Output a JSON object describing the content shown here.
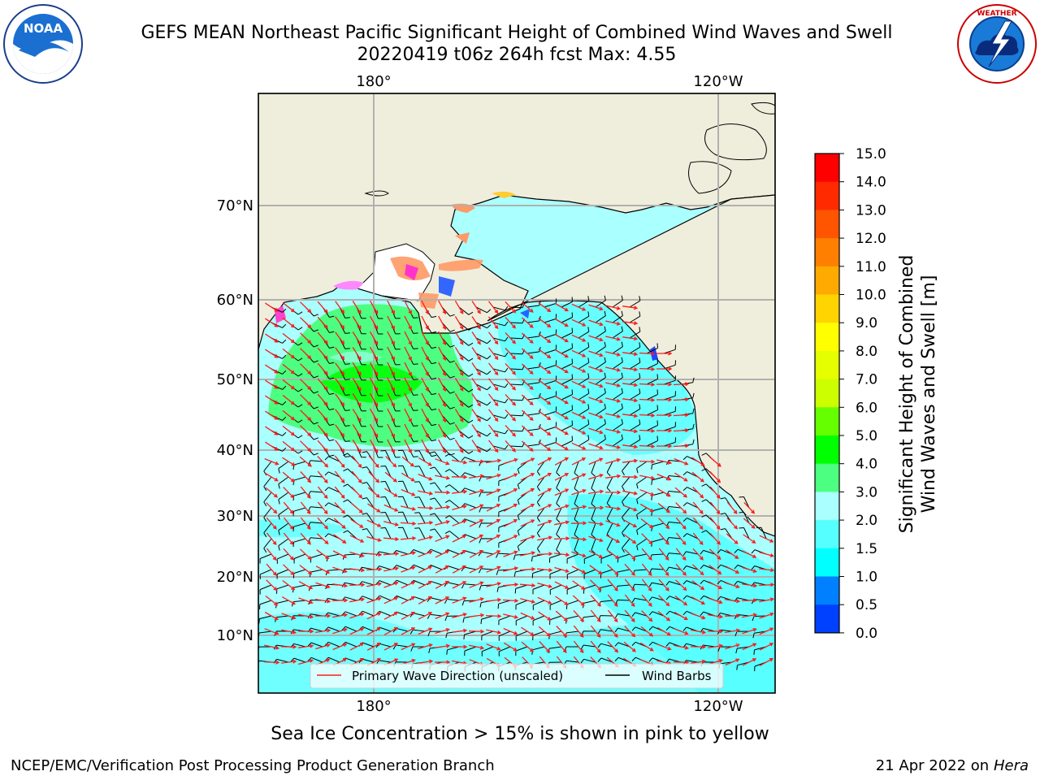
{
  "title_line1": "GEFS MEAN Northeast Pacific Significant Height of Combined Wind Waves and Swell",
  "title_line2": "20220419 t06z 264h fcst   Max: 4.55",
  "top_lon_labels": [
    "180°",
    "120°W"
  ],
  "bottom_lon_labels": [
    "180°",
    "120°W"
  ],
  "lat_labels": [
    "70°N",
    "60°N",
    "50°N",
    "40°N",
    "30°N",
    "20°N",
    "10°N"
  ],
  "legend": {
    "wave_direction": "Primary Wave Direction (unscaled)",
    "wind_barbs": "Wind Barbs",
    "wave_color": "#ff1a1a",
    "barb_color": "#000000"
  },
  "colorbar": {
    "label_line1": "Significant Height of Combined",
    "label_line2": "Wind Waves and Swell [m]",
    "ticks": [
      "15.0",
      "14.0",
      "13.0",
      "12.0",
      "11.0",
      "10.0",
      "9.0",
      "8.0",
      "7.0",
      "6.0",
      "5.0",
      "4.0",
      "3.0",
      "2.0",
      "1.5",
      "1.0",
      "0.5",
      "0.0"
    ],
    "colors_top_to_bottom": [
      "#ff0000",
      "#ff2a00",
      "#ff5500",
      "#ff8000",
      "#ffaa00",
      "#ffd400",
      "#ffff00",
      "#e6ff00",
      "#ccff00",
      "#66ff00",
      "#00ff00",
      "#4dff80",
      "#aaffff",
      "#55ffff",
      "#00ffff",
      "#0080ff",
      "#0040ff",
      "#0000ff"
    ]
  },
  "caption": "Sea Ice Concentration > 15% is shown in pink to yellow",
  "footer_left": "NCEP/EMC/Verification Post Processing Product Generation Branch",
  "footer_right_date": "21 Apr 2022 on",
  "footer_right_host": "Hera",
  "logos": {
    "left": "NOAA",
    "right_ring": "NATIONAL WEATHER SERVICE"
  },
  "colors": {
    "land": "#efeedc",
    "ocean_low": "#aaffff",
    "ocean_mid": "#55ffff",
    "swell_high": "#4dff80",
    "swell_peak": "#00ff00"
  }
}
